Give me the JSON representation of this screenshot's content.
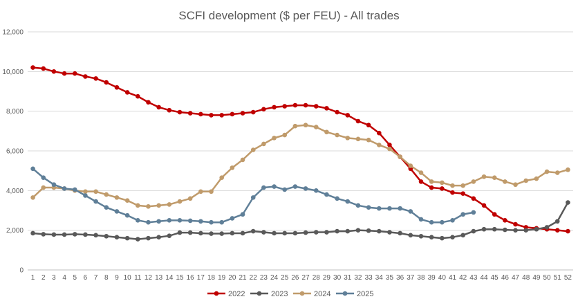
{
  "chart_data": {
    "type": "line",
    "title": "SCFI development ($ per FEU) - All trades",
    "xlabel": "",
    "ylabel": "",
    "x": [
      1,
      2,
      3,
      4,
      5,
      6,
      7,
      8,
      9,
      10,
      11,
      12,
      13,
      14,
      15,
      16,
      17,
      18,
      19,
      20,
      21,
      22,
      23,
      24,
      25,
      26,
      27,
      28,
      29,
      30,
      31,
      32,
      33,
      34,
      35,
      36,
      37,
      38,
      39,
      40,
      41,
      42,
      43,
      44,
      45,
      46,
      47,
      48,
      49,
      50,
      51,
      52
    ],
    "ylim": [
      0,
      12000
    ],
    "yticks": [
      0,
      2000,
      4000,
      6000,
      8000,
      10000,
      12000
    ],
    "ytick_labels": [
      "0",
      "2,000",
      "4,000",
      "6,000",
      "8,000",
      "10,000",
      "12,000"
    ],
    "grid": true,
    "legend_position": "bottom",
    "series": [
      {
        "name": "2022",
        "color": "#C00000",
        "values": [
          10200,
          10150,
          10000,
          9900,
          9900,
          9750,
          9650,
          9450,
          9200,
          8950,
          8750,
          8450,
          8200,
          8050,
          7950,
          7900,
          7850,
          7800,
          7800,
          7850,
          7900,
          7950,
          8100,
          8200,
          8250,
          8300,
          8300,
          8250,
          8150,
          7950,
          7800,
          7500,
          7300,
          6900,
          6300,
          5700,
          5100,
          4450,
          4150,
          4100,
          3900,
          3850,
          3600,
          3250,
          2800,
          2500,
          2300,
          2150,
          2100,
          2050,
          2000,
          1950
        ]
      },
      {
        "name": "2023",
        "color": "#595959",
        "values": [
          1850,
          1800,
          1780,
          1780,
          1800,
          1780,
          1750,
          1700,
          1650,
          1600,
          1550,
          1600,
          1650,
          1720,
          1880,
          1880,
          1850,
          1830,
          1830,
          1850,
          1850,
          1950,
          1900,
          1850,
          1850,
          1850,
          1880,
          1900,
          1900,
          1950,
          1950,
          2000,
          1980,
          1950,
          1900,
          1850,
          1750,
          1700,
          1650,
          1600,
          1650,
          1750,
          1950,
          2050,
          2050,
          2020,
          2000,
          2000,
          2050,
          2150,
          2450,
          3400
        ]
      },
      {
        "name": "2024",
        "color": "#C09B6B",
        "values": [
          3650,
          4150,
          4150,
          4100,
          4000,
          3950,
          3950,
          3800,
          3650,
          3500,
          3250,
          3200,
          3250,
          3300,
          3450,
          3600,
          3950,
          3950,
          4650,
          5150,
          5550,
          6050,
          6350,
          6650,
          6800,
          7250,
          7300,
          7200,
          6950,
          6800,
          6650,
          6600,
          6550,
          6300,
          6100,
          5700,
          5250,
          4900,
          4450,
          4400,
          4250,
          4250,
          4450,
          4700,
          4650,
          4450,
          4300,
          4500,
          4600,
          4950,
          4900,
          5050
        ]
      },
      {
        "name": "2025",
        "color": "#5F7F98",
        "values": [
          5100,
          4650,
          4300,
          4100,
          4050,
          3750,
          3450,
          3150,
          2950,
          2750,
          2500,
          2400,
          2450,
          2500,
          2500,
          2480,
          2450,
          2400,
          2400,
          2600,
          2800,
          3650,
          4150,
          4200,
          4050,
          4200,
          4100,
          4000,
          3800,
          3600,
          3450,
          3250,
          3150,
          3100,
          3100,
          3100,
          2950,
          2550,
          2400,
          2400,
          2500,
          2800,
          2900,
          null,
          null,
          null,
          null,
          null,
          null,
          null,
          null,
          null
        ]
      }
    ]
  }
}
